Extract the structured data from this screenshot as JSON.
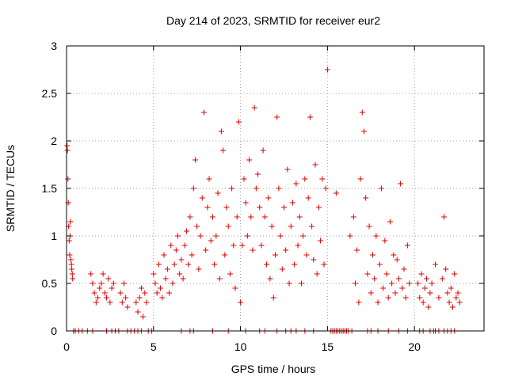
{
  "chart_data": {
    "type": "scatter",
    "title": "Day 214 of 2023, SRMTID for receiver eur2",
    "xlabel": "GPS time / hours",
    "ylabel": "SRMTID / TECUs",
    "xlim": [
      0,
      24
    ],
    "ylim": [
      0,
      3
    ],
    "xticks": [
      0,
      5,
      10,
      15,
      20
    ],
    "xtick_labels": [
      "0",
      "5",
      "10",
      "15",
      "20"
    ],
    "yticks": [
      0,
      0.5,
      1,
      1.5,
      2,
      2.5,
      3
    ],
    "ytick_labels": [
      "0",
      "0.5",
      "1",
      "1.5",
      "2",
      "2.5",
      "3"
    ],
    "grid": true,
    "marker": "+",
    "color": "#e00000",
    "series": [
      {
        "name": "SRMTID",
        "x": [
          0.03,
          0.05,
          0.08,
          0.1,
          0.12,
          0.15,
          0.18,
          0.2,
          0.22,
          0.25,
          0.28,
          0.3,
          0.33,
          0.35,
          1.4,
          1.5,
          1.6,
          1.7,
          1.8,
          1.9,
          2.0,
          2.1,
          2.2,
          2.3,
          2.4,
          2.5,
          2.6,
          2.7,
          3.1,
          3.2,
          3.3,
          3.4,
          3.5,
          4.0,
          4.1,
          4.2,
          4.3,
          4.4,
          4.5,
          4.6,
          5.0,
          5.1,
          5.2,
          5.3,
          5.4,
          5.5,
          5.6,
          5.7,
          5.8,
          5.9,
          6.0,
          6.1,
          6.2,
          6.3,
          6.4,
          6.5,
          6.6,
          6.7,
          6.8,
          6.9,
          7.0,
          7.1,
          7.2,
          7.3,
          7.4,
          7.5,
          7.6,
          7.7,
          7.8,
          7.9,
          8.0,
          8.1,
          8.2,
          8.3,
          8.4,
          8.5,
          8.6,
          8.7,
          8.8,
          8.9,
          9.0,
          9.1,
          9.2,
          9.3,
          9.4,
          9.5,
          9.6,
          9.7,
          9.8,
          9.9,
          10.0,
          10.1,
          10.2,
          10.3,
          10.4,
          10.5,
          10.6,
          10.7,
          10.8,
          10.9,
          11.0,
          11.1,
          11.2,
          11.3,
          11.4,
          11.5,
          11.6,
          11.7,
          11.8,
          11.9,
          12.0,
          12.1,
          12.2,
          12.3,
          12.4,
          12.5,
          12.6,
          12.7,
          12.8,
          12.9,
          13.0,
          13.1,
          13.2,
          13.3,
          13.4,
          13.5,
          13.6,
          13.7,
          13.8,
          13.9,
          14.0,
          14.1,
          14.2,
          14.3,
          14.4,
          14.5,
          14.6,
          14.7,
          14.8,
          14.9,
          15.0,
          15.5,
          16.3,
          16.5,
          16.6,
          16.7,
          16.8,
          16.9,
          17.0,
          17.1,
          17.2,
          17.3,
          17.4,
          17.5,
          17.6,
          17.7,
          17.8,
          17.9,
          18.0,
          18.1,
          18.2,
          18.3,
          18.4,
          18.5,
          18.6,
          18.7,
          18.8,
          18.9,
          19.0,
          19.1,
          19.2,
          19.3,
          19.4,
          19.5,
          19.6,
          19.7,
          20.2,
          20.3,
          20.4,
          20.5,
          20.6,
          20.7,
          20.8,
          20.9,
          21.0,
          21.2,
          21.4,
          21.6,
          21.7,
          21.8,
          21.9,
          22.0,
          22.1,
          22.2,
          22.3,
          22.4,
          22.5,
          22.6
        ],
        "y": [
          1.95,
          1.9,
          1.6,
          1.35,
          1.1,
          0.95,
          0.8,
          1.0,
          1.15,
          0.75,
          0.7,
          0.65,
          0.6,
          0.55,
          0.6,
          0.5,
          0.4,
          0.3,
          0.35,
          0.45,
          0.5,
          0.6,
          0.4,
          0.35,
          0.55,
          0.3,
          0.45,
          0.5,
          0.4,
          0.3,
          0.5,
          0.35,
          0.25,
          0.3,
          0.2,
          0.35,
          0.45,
          0.15,
          0.4,
          0.3,
          0.6,
          0.5,
          0.4,
          0.7,
          0.45,
          0.35,
          0.8,
          0.55,
          0.65,
          0.4,
          0.9,
          0.5,
          0.7,
          0.85,
          1.0,
          0.6,
          0.75,
          0.55,
          0.9,
          1.05,
          0.7,
          1.2,
          0.8,
          1.5,
          1.8,
          1.1,
          0.65,
          1.0,
          1.4,
          2.3,
          0.85,
          1.3,
          1.6,
          0.95,
          1.2,
          0.7,
          1.0,
          1.45,
          0.55,
          2.1,
          1.9,
          0.8,
          1.3,
          1.1,
          0.6,
          1.5,
          0.9,
          0.45,
          1.2,
          2.2,
          0.3,
          0.9,
          1.6,
          1.35,
          1.0,
          1.8,
          1.2,
          0.85,
          2.35,
          1.5,
          1.65,
          1.3,
          0.9,
          1.9,
          1.2,
          0.7,
          1.4,
          0.55,
          1.1,
          0.35,
          0.8,
          2.25,
          1.5,
          1.0,
          0.65,
          1.3,
          0.85,
          1.7,
          0.5,
          1.1,
          1.35,
          0.7,
          1.55,
          0.9,
          1.2,
          0.5,
          1.0,
          1.6,
          0.8,
          1.4,
          2.25,
          1.1,
          0.75,
          1.75,
          0.6,
          1.3,
          0.95,
          1.6,
          0.7,
          1.5,
          2.75,
          1.45,
          1.0,
          1.2,
          0.5,
          0.85,
          0.3,
          1.6,
          2.3,
          2.1,
          1.4,
          0.6,
          1.1,
          0.4,
          0.8,
          0.55,
          1.0,
          0.3,
          0.7,
          1.5,
          0.45,
          0.95,
          0.6,
          0.35,
          1.15,
          0.5,
          0.8,
          0.4,
          0.75,
          0.55,
          1.55,
          0.45,
          0.65,
          0.35,
          0.9,
          0.5,
          0.5,
          0.35,
          0.6,
          0.3,
          0.45,
          0.55,
          0.25,
          0.4,
          0.5,
          0.7,
          0.35,
          0.55,
          1.2,
          0.65,
          0.4,
          0.3,
          0.45,
          0.25,
          0.6,
          0.35,
          0.4,
          0.3
        ],
        "zeros_x": [
          0.4,
          0.5,
          0.7,
          0.9,
          1.2,
          1.5,
          2.3,
          2.6,
          2.8,
          3.0,
          3.5,
          3.7,
          3.9,
          4.1,
          4.3,
          4.7,
          4.9,
          6.6,
          7.1,
          7.3,
          8.4,
          9.3,
          10.3,
          11.1,
          11.4,
          12.1,
          12.6,
          12.9,
          13.2,
          13.7,
          14.2,
          15.2,
          15.3,
          15.4,
          15.5,
          15.6,
          15.7,
          15.8,
          15.9,
          16.0,
          16.1,
          16.2,
          16.4,
          17.3,
          17.5,
          17.9,
          18.5,
          19.1,
          19.6,
          20.3,
          20.5,
          20.9,
          21.1,
          21.2,
          21.4,
          21.7,
          21.9,
          22.1,
          22.3
        ]
      }
    ]
  }
}
